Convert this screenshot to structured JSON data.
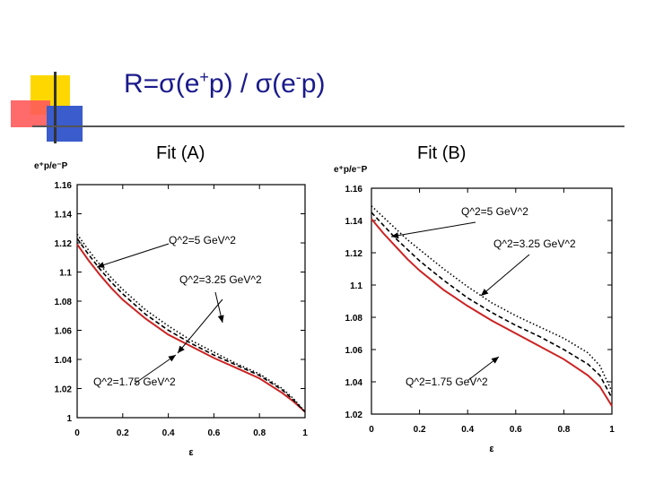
{
  "slide": {
    "title_main": "R=σ(e",
    "title_sup1": "+",
    "title_mid": "p) / σ(e",
    "title_sup2": "-",
    "title_end": "p)"
  },
  "fit_a_label": "Fit (A)",
  "fit_b_label": "Fit (B)",
  "colors": {
    "title": "#1a1a8c",
    "deco_yellow": "#ffd700",
    "deco_red": "#ff3b3b",
    "deco_blue": "#3a5ccc",
    "curve_red": "#cc2222",
    "curve_black": "#000000"
  },
  "chart_data": [
    {
      "type": "line",
      "panel": "Fit (A)",
      "ylabel": "e⁺p/e⁻P",
      "xlabel": "ε",
      "xlim": [
        0,
        1
      ],
      "ylim": [
        1,
        1.16
      ],
      "xticks": [
        0,
        0.2,
        0.4,
        0.6,
        0.8,
        1
      ],
      "xtick_labels": [
        "0",
        "0.2",
        "0.4",
        "0.6",
        "0.8",
        "1"
      ],
      "yticks": [
        1,
        1.02,
        1.04,
        1.06,
        1.08,
        1.1,
        1.12,
        1.14,
        1.16
      ],
      "ytick_labels": [
        "1",
        "1.02",
        "1.04",
        "1.06",
        "1.08",
        "1.1",
        "1.12",
        "1.14",
        "1.16"
      ],
      "x": [
        0,
        0.05,
        0.1,
        0.15,
        0.2,
        0.3,
        0.4,
        0.5,
        0.6,
        0.7,
        0.8,
        0.9,
        0.95,
        1.0
      ],
      "series": [
        {
          "style": "solid",
          "color": "#cc2222",
          "values": [
            1.119,
            1.108,
            1.098,
            1.089,
            1.081,
            1.068,
            1.057,
            1.049,
            1.041,
            1.034,
            1.027,
            1.017,
            1.011,
            1.004
          ]
        },
        {
          "style": "dashed",
          "color": "#000000",
          "values": [
            1.123,
            1.112,
            1.102,
            1.093,
            1.085,
            1.071,
            1.06,
            1.051,
            1.043,
            1.036,
            1.029,
            1.019,
            1.012,
            1.004
          ]
        },
        {
          "style": "dotted",
          "color": "#000000",
          "values": [
            1.126,
            1.115,
            1.105,
            1.096,
            1.088,
            1.074,
            1.063,
            1.053,
            1.045,
            1.037,
            1.03,
            1.02,
            1.013,
            1.004
          ]
        }
      ],
      "annotations": [
        {
          "text": "Q^2=5 GeV^2",
          "x": 0.42,
          "y": 1.118
        },
        {
          "text": "Q^2=3.25 GeV^2",
          "x": 0.64,
          "y": 1.094
        },
        {
          "text": "Q^2=1.75 GeV^2",
          "x": 0.24,
          "y": 1.023
        }
      ]
    },
    {
      "type": "line",
      "panel": "Fit (B)",
      "ylabel": "e⁺p/e⁻P",
      "xlabel": "ε",
      "xlim": [
        0,
        1
      ],
      "ylim": [
        1.02,
        1.16
      ],
      "xticks": [
        0,
        0.2,
        0.4,
        0.6,
        0.8,
        1
      ],
      "xtick_labels": [
        "0",
        "0.2",
        "0.4",
        "0.6",
        "0.8",
        "1"
      ],
      "yticks": [
        1.02,
        1.04,
        1.06,
        1.08,
        1.1,
        1.12,
        1.14,
        1.16
      ],
      "ytick_labels": [
        "1.02",
        "1.04",
        "1.06",
        "1.08",
        "1.1",
        "1.12",
        "1.14",
        "1.16"
      ],
      "x": [
        0,
        0.05,
        0.1,
        0.15,
        0.2,
        0.3,
        0.4,
        0.5,
        0.6,
        0.7,
        0.8,
        0.9,
        0.95,
        1.0
      ],
      "series": [
        {
          "style": "solid",
          "color": "#cc2222",
          "values": [
            1.141,
            1.132,
            1.124,
            1.116,
            1.109,
            1.097,
            1.087,
            1.078,
            1.07,
            1.062,
            1.054,
            1.044,
            1.037,
            1.025
          ]
        },
        {
          "style": "dashed",
          "color": "#000000",
          "values": [
            1.145,
            1.137,
            1.129,
            1.122,
            1.115,
            1.103,
            1.092,
            1.083,
            1.075,
            1.068,
            1.06,
            1.051,
            1.044,
            1.03
          ]
        },
        {
          "style": "dotted",
          "color": "#000000",
          "values": [
            1.149,
            1.142,
            1.135,
            1.128,
            1.122,
            1.11,
            1.099,
            1.089,
            1.081,
            1.074,
            1.067,
            1.058,
            1.05,
            1.034
          ]
        }
      ],
      "annotations": [
        {
          "text": "Q^2=5 GeV^2",
          "x": 0.68,
          "y": 1.153
        },
        {
          "text": "Q^2=3.25 GeV^2",
          "x": 0.77,
          "y": 1.127
        },
        {
          "text": "Q^2=1.75 GeV^2",
          "x": 0.37,
          "y": 1.044
        }
      ]
    }
  ]
}
